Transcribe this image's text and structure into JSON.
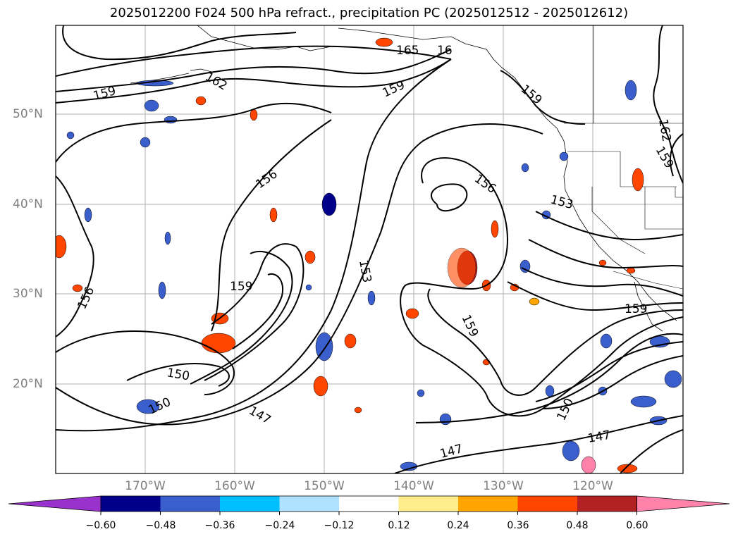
{
  "title": "2025012200 F024 500 hPa refract., precipitation PC (2025012512 - 2025012612)",
  "lat_labels": [
    "50°N",
    "40°N",
    "30°N",
    "20°N"
  ],
  "lon_labels": [
    "170°W",
    "160°W",
    "150°W",
    "140°W",
    "130°W",
    "120°W"
  ],
  "contour_labels": [
    "165",
    "16",
    "162",
    "159",
    "159",
    "159",
    "156",
    "156",
    "156",
    "153",
    "153",
    "159",
    "159",
    "159",
    "150",
    "150",
    "150",
    "147",
    "147",
    "147",
    "162",
    "159"
  ],
  "colorbar": {
    "ticks": [
      "−0.60",
      "−0.48",
      "−0.36",
      "−0.24",
      "−0.12",
      "0.12",
      "0.24",
      "0.36",
      "0.48",
      "0.60"
    ],
    "colors": [
      "#9932cc",
      "#00008b",
      "#3a5fcd",
      "#00bfff",
      "#b0e2ff",
      "#ffffff",
      "#ffec8b",
      "#ffa500",
      "#ff4500",
      "#b22222",
      "#ff82ab"
    ]
  }
}
